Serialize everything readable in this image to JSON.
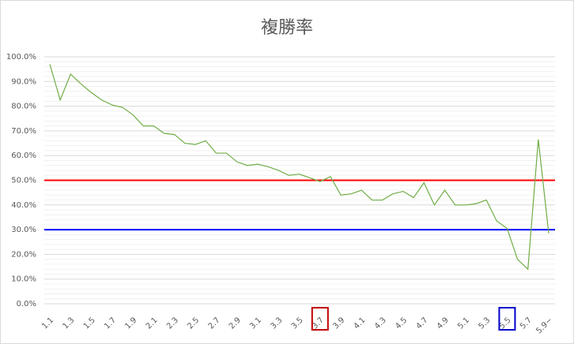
{
  "chart_data": {
    "type": "line",
    "title": "複勝率",
    "categories": [
      "1.1",
      null,
      "1.3",
      null,
      "1.5",
      null,
      "1.7",
      null,
      "1.9",
      null,
      "2.1",
      null,
      "2.3",
      null,
      "2.5",
      null,
      "2.7",
      null,
      "2.9",
      null,
      "3.1",
      null,
      "3.3",
      null,
      "3.5",
      null,
      "3.7",
      null,
      "3.9",
      null,
      "4.1",
      null,
      "4.3",
      null,
      "4.5",
      null,
      "4.7",
      null,
      "4.9",
      null,
      "5.1",
      null,
      "5.3",
      null,
      "5.5",
      null,
      "5.7",
      null,
      "5.9~"
    ],
    "series": [
      {
        "name": "複勝率",
        "color": "#70ad47",
        "values": [
          97,
          82.5,
          93,
          89,
          85.5,
          82.5,
          80.5,
          79.5,
          76.5,
          72,
          72,
          69,
          68.5,
          65,
          64.5,
          66,
          61,
          61,
          57.5,
          56,
          56.5,
          55.5,
          54,
          52,
          52.5,
          51,
          49.5,
          51.5,
          44,
          44.5,
          46,
          42,
          42,
          44.5,
          45.5,
          43,
          49,
          40,
          46,
          40,
          40,
          40.5,
          42,
          33.5,
          30.5,
          18,
          14,
          66.5,
          28.5
        ]
      }
    ],
    "ylim": [
      0,
      100
    ],
    "yticks": [
      {
        "value": 0,
        "label": "0.0%"
      },
      {
        "value": 10,
        "label": "10.0%"
      },
      {
        "value": 20,
        "label": "20.0%"
      },
      {
        "value": 30,
        "label": "30.0%"
      },
      {
        "value": 40,
        "label": "40.0%"
      },
      {
        "value": 50,
        "label": "50.0%"
      },
      {
        "value": 60,
        "label": "60.0%"
      },
      {
        "value": 70,
        "label": "70.0%"
      },
      {
        "value": 80,
        "label": "80.0%"
      },
      {
        "value": 90,
        "label": "90.0%"
      },
      {
        "value": 100,
        "label": "100.0%"
      }
    ],
    "grid": true,
    "reference_lines": [
      {
        "value": 50,
        "color": "#ff0000"
      },
      {
        "value": 30,
        "color": "#0000ff"
      }
    ],
    "highlighted_categories": [
      {
        "category": "3.7",
        "color": "#c00000"
      },
      {
        "category": "5.5",
        "color": "#0000cc"
      }
    ]
  }
}
